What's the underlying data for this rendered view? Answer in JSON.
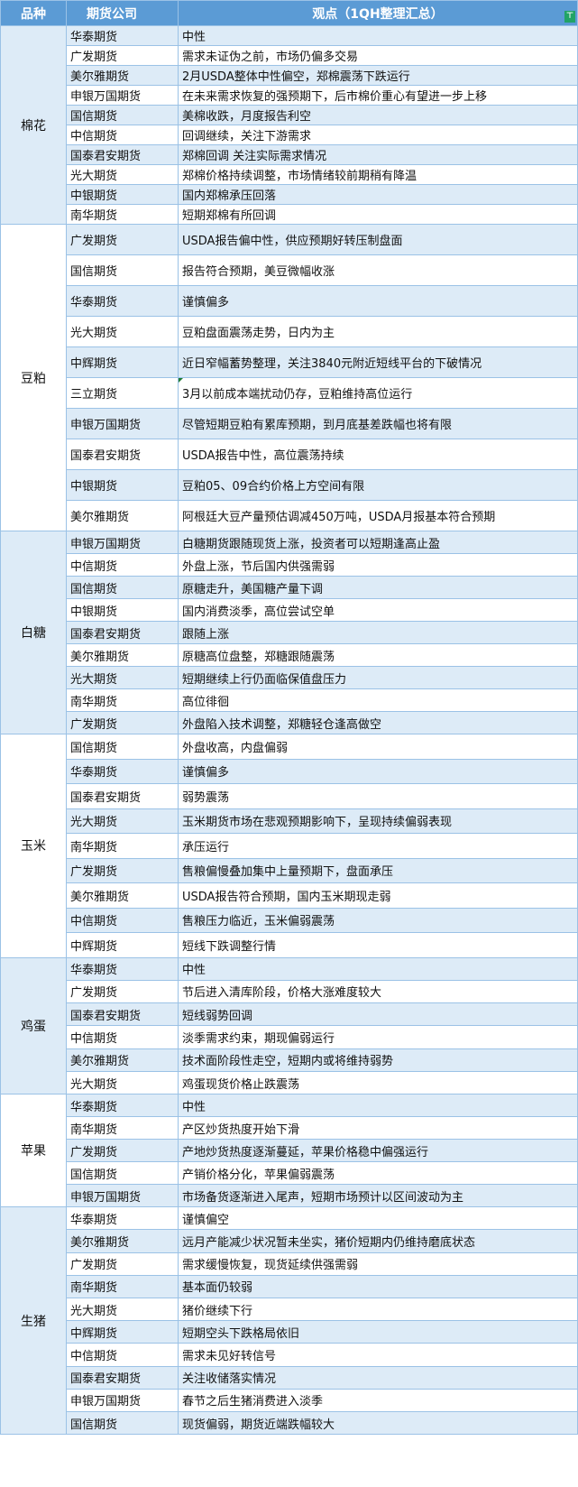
{
  "header": {
    "col_variety": "品种",
    "col_company": "期货公司",
    "col_view": "观点（1QH整理汇总）",
    "filter_icon": "filter-icon"
  },
  "colors": {
    "header_bg": "#5B9BD5",
    "stripe": "#DDEBF7",
    "border": "#9BC2E6"
  },
  "groups": [
    {
      "variety": "棉花",
      "rows": [
        [
          "华泰期货",
          "中性"
        ],
        [
          "广发期货",
          "需求未证伪之前，市场仍偏多交易"
        ],
        [
          "美尔雅期货",
          "2月USDA整体中性偏空，郑棉震荡下跌运行"
        ],
        [
          "申银万国期货",
          "在未来需求恢复的强预期下，后市棉价重心有望进一步上移"
        ],
        [
          "国信期货",
          "美棉收跌，月度报告利空"
        ],
        [
          "中信期货",
          "回调继续，关注下游需求"
        ],
        [
          "国泰君安期货",
          "郑棉回调 关注实际需求情况"
        ],
        [
          "光大期货",
          "郑棉价格持续调整，市场情绪较前期稍有降温"
        ],
        [
          "中银期货",
          "国内郑棉承压回落"
        ],
        [
          "南华期货",
          "短期郑棉有所回调"
        ]
      ]
    },
    {
      "variety": "豆粕",
      "rows": [
        [
          "广发期货",
          "USDA报告偏中性，供应预期好转压制盘面"
        ],
        [
          "国信期货",
          "报告符合预期，美豆微幅收涨"
        ],
        [
          "华泰期货",
          "谨慎偏多"
        ],
        [
          "光大期货",
          "豆粕盘面震荡走势，日内为主"
        ],
        [
          "中辉期货",
          "近日窄幅蓄势整理，关注3840元附近短线平台的下破情况"
        ],
        [
          "三立期货",
          "3月以前成本端扰动仍存，豆粕维持高位运行"
        ],
        [
          "申银万国期货",
          "尽管短期豆粕有累库预期，到月底基差跌幅也将有限"
        ],
        [
          "国泰君安期货",
          "USDA报告中性，高位震荡持续"
        ],
        [
          "中银期货",
          "豆粕05、09合约价格上方空间有限"
        ],
        [
          "美尔雅期货",
          "阿根廷大豆产量预估调减450万吨，USDA月报基本符合预期"
        ]
      ]
    },
    {
      "variety": "白糖",
      "rows": [
        [
          "申银万国期货",
          "白糖期货跟随现货上涨，投资者可以短期逢高止盈"
        ],
        [
          "中信期货",
          "外盘上涨，节后国内供强需弱"
        ],
        [
          "国信期货",
          "原糖走升，美国糖产量下调"
        ],
        [
          "中银期货",
          "国内消费淡季，高位尝试空单"
        ],
        [
          "国泰君安期货",
          "跟随上涨"
        ],
        [
          "美尔雅期货",
          "原糖高位盘整，郑糖跟随震荡"
        ],
        [
          "光大期货",
          "短期继续上行仍面临保值盘压力"
        ],
        [
          "南华期货",
          "高位徘徊"
        ],
        [
          "广发期货",
          "外盘陷入技术调整，郑糖轻仓逢高做空"
        ]
      ]
    },
    {
      "variety": "玉米",
      "rows": [
        [
          "国信期货",
          "外盘收高，内盘偏弱"
        ],
        [
          "华泰期货",
          "谨慎偏多"
        ],
        [
          "国泰君安期货",
          "弱势震荡"
        ],
        [
          "光大期货",
          "玉米期货市场在悲观预期影响下，呈现持续偏弱表现"
        ],
        [
          "南华期货",
          "承压运行"
        ],
        [
          "广发期货",
          "售粮偏慢叠加集中上量预期下，盘面承压"
        ],
        [
          "美尔雅期货",
          "USDA报告符合预期，国内玉米期现走弱"
        ],
        [
          "中信期货",
          "售粮压力临近，玉米偏弱震荡"
        ],
        [
          "中辉期货",
          "短线下跌调整行情"
        ]
      ]
    },
    {
      "variety": "鸡蛋",
      "rows": [
        [
          "华泰期货",
          "中性"
        ],
        [
          "广发期货",
          "节后进入清库阶段，价格大涨难度较大"
        ],
        [
          "国泰君安期货",
          "短线弱势回调"
        ],
        [
          "中信期货",
          "淡季需求约束，期现偏弱运行"
        ],
        [
          "美尔雅期货",
          "技术面阶段性走空，短期内或将维持弱势"
        ],
        [
          "光大期货",
          "鸡蛋现货价格止跌震荡"
        ]
      ]
    },
    {
      "variety": "苹果",
      "rows": [
        [
          "华泰期货",
          "中性"
        ],
        [
          "南华期货",
          "产区炒货热度开始下滑"
        ],
        [
          "广发期货",
          "产地炒货热度逐渐蔓延，苹果价格稳中偏强运行"
        ],
        [
          "国信期货",
          "产销价格分化，苹果偏弱震荡"
        ],
        [
          "申银万国期货",
          "市场备货逐渐进入尾声，短期市场预计以区间波动为主"
        ]
      ]
    },
    {
      "variety": "生猪",
      "rows": [
        [
          "华泰期货",
          "谨慎偏空"
        ],
        [
          "美尔雅期货",
          "远月产能减少状况暂未坐实，猪价短期内仍维持磨底状态"
        ],
        [
          "广发期货",
          "需求缓慢恢复，现货延续供强需弱"
        ],
        [
          "南华期货",
          "基本面仍较弱"
        ],
        [
          "光大期货",
          "猪价继续下行"
        ],
        [
          "中辉期货",
          "短期空头下跌格局依旧"
        ],
        [
          "中信期货",
          "需求未见好转信号"
        ],
        [
          "国泰君安期货",
          "关注收储落实情况"
        ],
        [
          "申银万国期货",
          "春节之后生猪消费进入淡季"
        ],
        [
          "国信期货",
          "现货偏弱，期货近端跌幅较大"
        ]
      ]
    }
  ]
}
